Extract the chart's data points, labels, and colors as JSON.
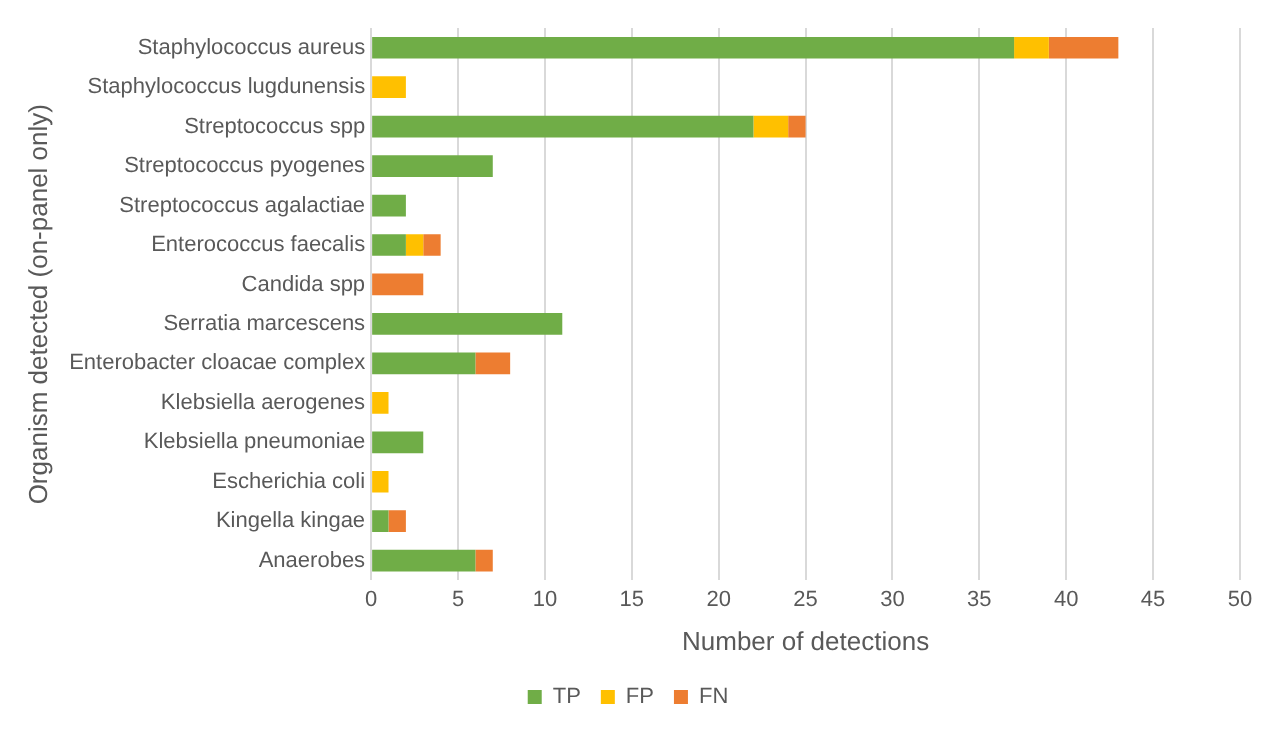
{
  "chart_data": {
    "type": "bar",
    "orientation": "horizontal",
    "stacked": true,
    "xlabel": "Number of detections",
    "ylabel": "Organism detected (on-panel only)",
    "categories": [
      "Staphylococcus aureus",
      "Staphylococcus lugdunensis",
      "Streptococcus spp",
      "Streptococcus pyogenes",
      "Streptococcus agalactiae",
      "Enterococcus faecalis",
      "Candida spp",
      "Serratia marcescens",
      "Enterobacter cloacae complex",
      "Klebsiella aerogenes",
      "Klebsiella pneumoniae",
      "Escherichia coli",
      "Kingella kingae",
      "Anaerobes"
    ],
    "series": [
      {
        "name": "TP",
        "color": "#70ad47",
        "values": [
          37,
          0,
          22,
          7,
          2,
          2,
          0,
          11,
          6,
          0,
          3,
          0,
          1,
          6
        ]
      },
      {
        "name": "FP",
        "color": "#ffc000",
        "values": [
          2,
          2,
          2,
          0,
          0,
          1,
          0,
          0,
          0,
          1,
          0,
          1,
          0,
          0
        ]
      },
      {
        "name": "FN",
        "color": "#ed7d31",
        "values": [
          4,
          0,
          1,
          0,
          0,
          1,
          3,
          0,
          2,
          0,
          0,
          0,
          1,
          1
        ]
      }
    ],
    "xlim": [
      0,
      50
    ],
    "xticks": [
      0,
      5,
      10,
      15,
      20,
      25,
      30,
      35,
      40,
      45,
      50
    ],
    "grid": "x",
    "legend": "bottom"
  }
}
